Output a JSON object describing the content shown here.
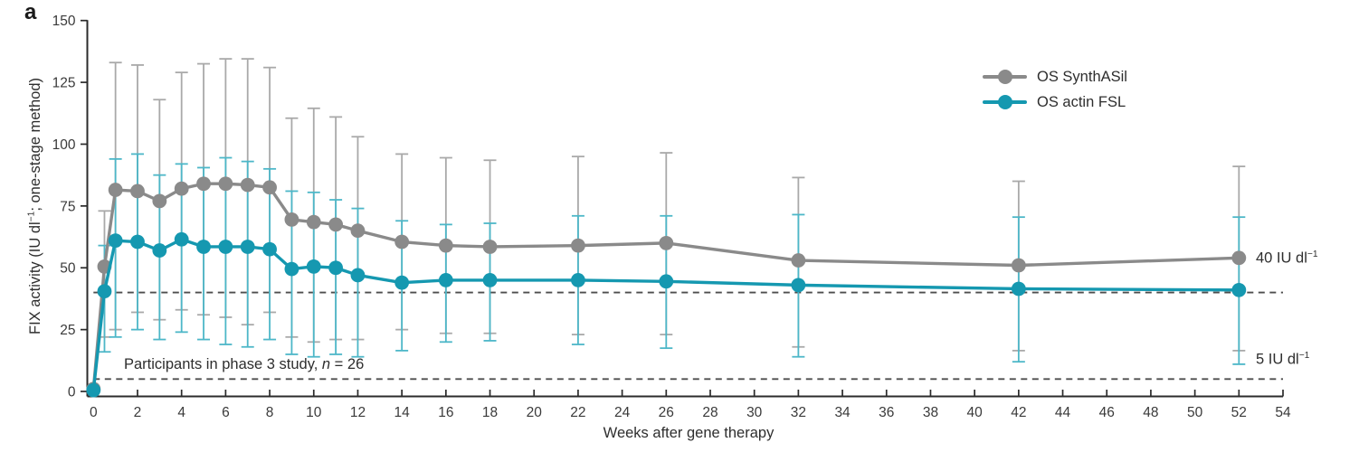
{
  "panel_label": "a",
  "chart_data": {
    "type": "line",
    "title": "",
    "xlabel": "Weeks after gene therapy",
    "ylabel": "FIX activity (IU dl⁻¹; one-stage method)",
    "xlim": [
      0,
      54
    ],
    "ylim": [
      0,
      150
    ],
    "grid": false,
    "legend_position": "top-right",
    "x_ticks": [
      0,
      2,
      4,
      6,
      8,
      10,
      12,
      14,
      16,
      18,
      20,
      22,
      24,
      26,
      28,
      30,
      32,
      34,
      36,
      38,
      40,
      42,
      44,
      46,
      48,
      50,
      52,
      54
    ],
    "y_ticks": [
      0,
      25,
      50,
      75,
      100,
      125,
      150
    ],
    "x": [
      0,
      0.5,
      1,
      2,
      3,
      4,
      5,
      6,
      7,
      8,
      9,
      10,
      11,
      12,
      14,
      16,
      18,
      22,
      26,
      32,
      42,
      52
    ],
    "series": [
      {
        "name": "OS SynthASil",
        "color": "#8a8a8a",
        "errbar_color": "#a9a9a9",
        "values": [
          1,
          50.5,
          81.5,
          81,
          77,
          82,
          84,
          84,
          83.5,
          82.5,
          69.5,
          68.5,
          67.5,
          65,
          60.5,
          59,
          58.5,
          59,
          60,
          53,
          51,
          54
        ],
        "upper": [
          1,
          73,
          133,
          132,
          118,
          129,
          132.5,
          134.5,
          134.5,
          131,
          110.5,
          114.5,
          111,
          103,
          96,
          94.5,
          93.5,
          95,
          96.5,
          86.5,
          85,
          91
        ],
        "lower": [
          1,
          22,
          25,
          32,
          29,
          33,
          31,
          30,
          27,
          32,
          22,
          20,
          21,
          21,
          25,
          23.5,
          23.5,
          23,
          23,
          18,
          16.5,
          16.5
        ]
      },
      {
        "name": "OS actin FSL",
        "color": "#1598b0",
        "errbar_color": "#4db7c8",
        "values": [
          0.5,
          40.5,
          61,
          60.5,
          57,
          61.5,
          58.5,
          58.5,
          58.5,
          57.5,
          49.5,
          50.5,
          50,
          47,
          44,
          45,
          45,
          45,
          44.5,
          43,
          41.5,
          41
        ],
        "upper": [
          0.5,
          59,
          94,
          96,
          87.5,
          92,
          90.5,
          94.5,
          93,
          90,
          81,
          80.5,
          77.5,
          74,
          69,
          67.5,
          68,
          71,
          71,
          71.5,
          70.5,
          70.5
        ],
        "lower": [
          0.5,
          16,
          22,
          25,
          21,
          24,
          21,
          19,
          18,
          21,
          15,
          14,
          15,
          14,
          16.5,
          20,
          20.5,
          19,
          17.5,
          14,
          12,
          11
        ]
      }
    ],
    "reference_lines": [
      {
        "value": 40,
        "label": "40 IU dl⁻¹",
        "label_pre": "40 IU dl",
        "label_sup": "−1"
      },
      {
        "value": 5,
        "label": "5 IU dl⁻¹",
        "label_pre": "5 IU dl",
        "label_sup": "−1"
      }
    ]
  },
  "y_axis_title": {
    "pre": "FIX activity (IU dl",
    "sup": "−1",
    "post": "; one-stage method)"
  },
  "annotation": {
    "pre": "Participants in phase 3 study, ",
    "var": "n",
    "post": " = 26"
  },
  "colors": {
    "axis": "#2b2b2b",
    "tick_label": "#3a3a3a",
    "text": "#2e2e2e",
    "dashed_line": "#4d4d4d",
    "background": "#ffffff"
  }
}
